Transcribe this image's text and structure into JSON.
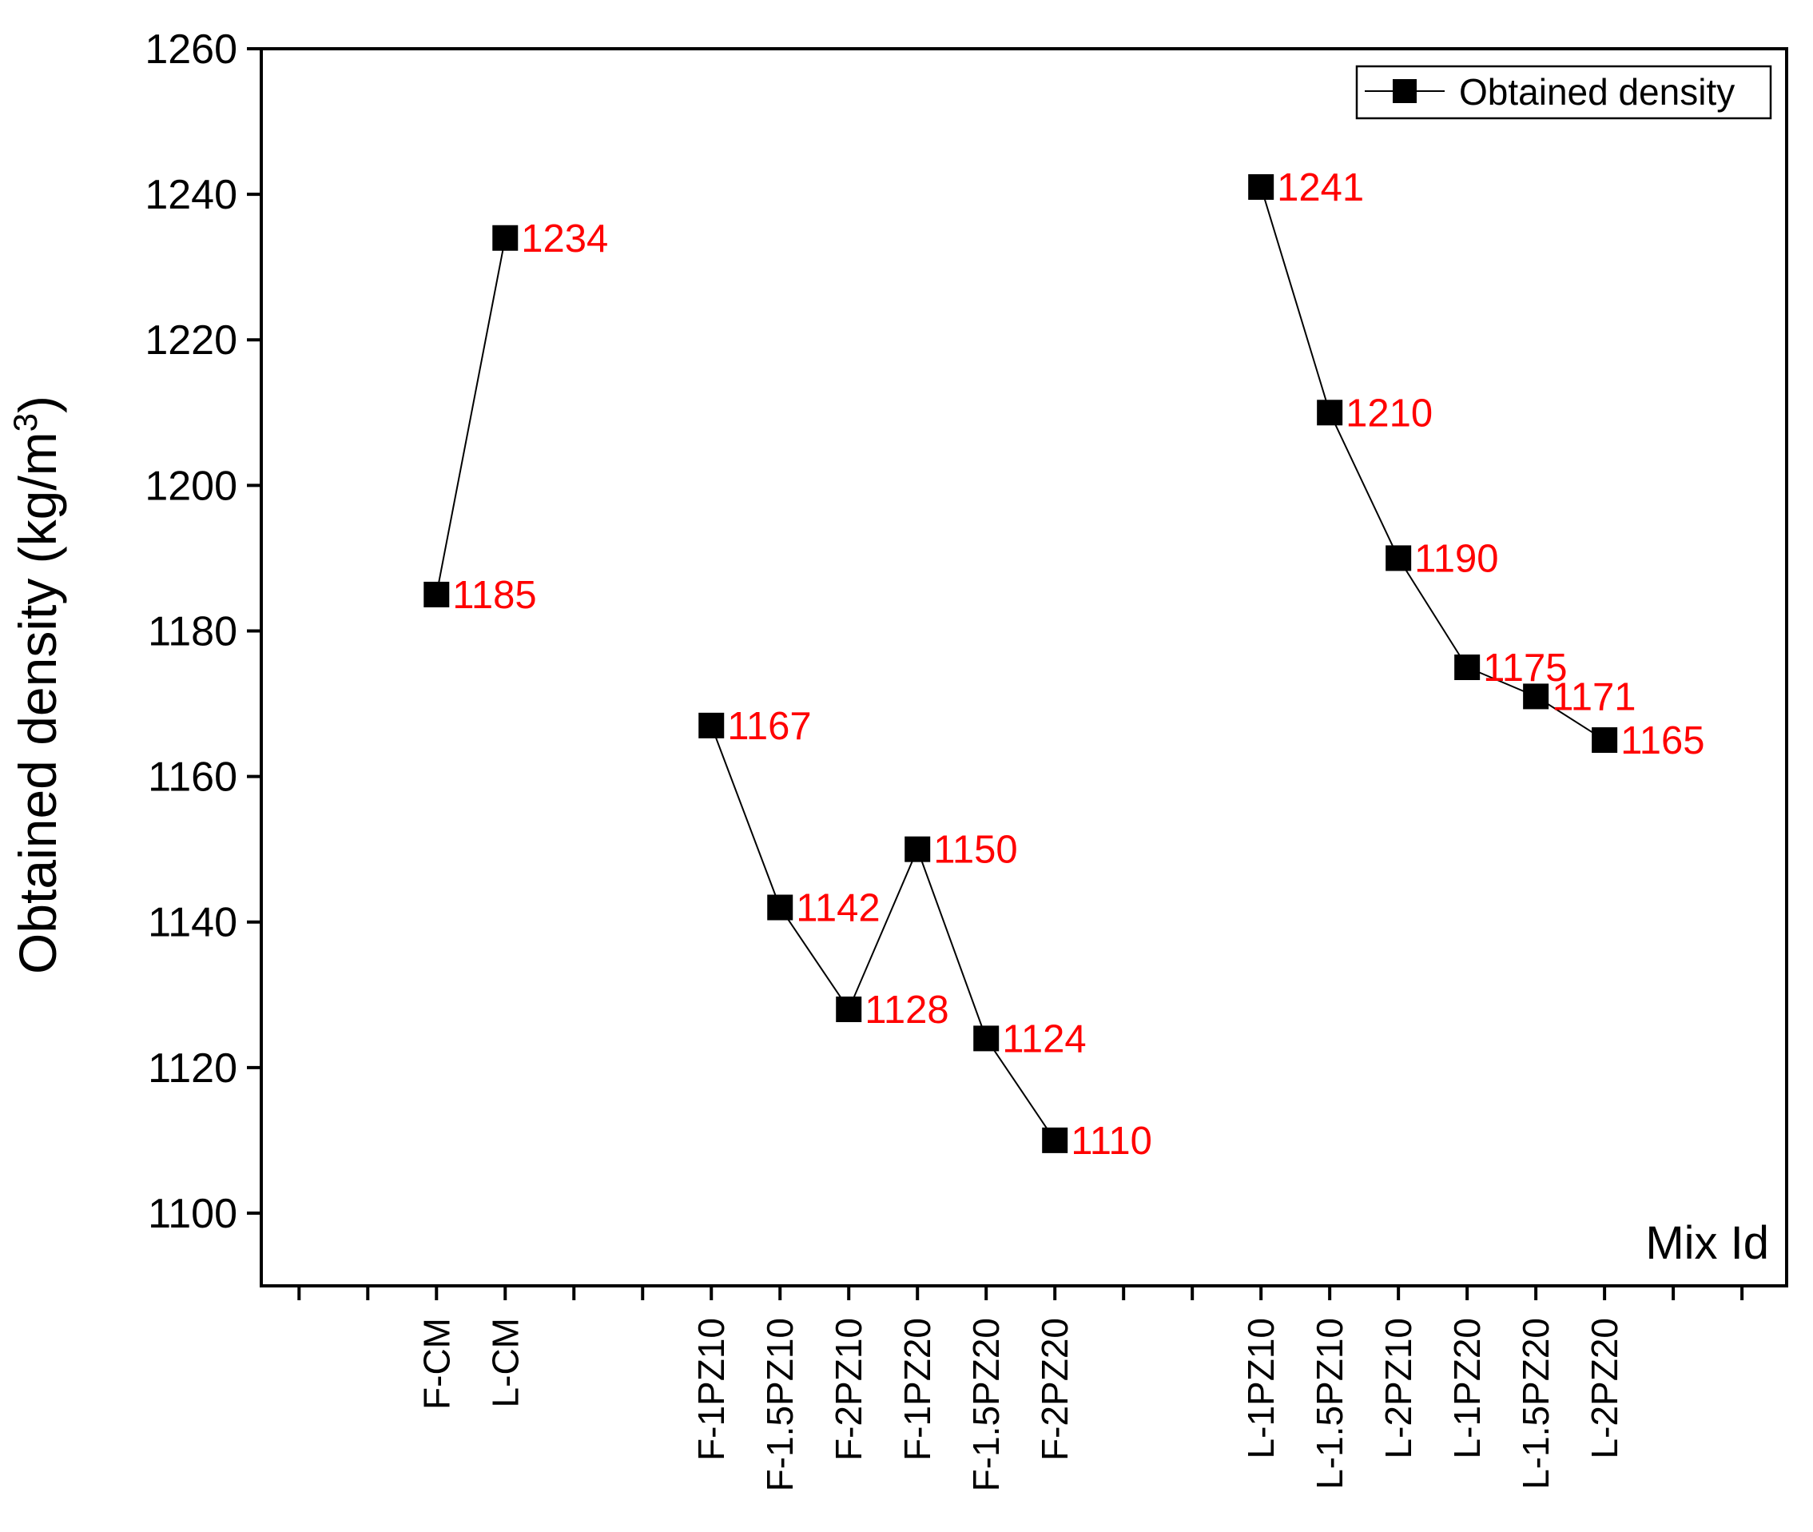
{
  "chart_data": {
    "type": "line",
    "title": "",
    "xlabel": "Mix Id",
    "ylabel": "Obtained density (kg/m",
    "ylabel_superscript": "3",
    "ylabel_close": ")",
    "ylim": [
      1090,
      1260
    ],
    "yticks": [
      1100,
      1120,
      1140,
      1160,
      1180,
      1200,
      1220,
      1240,
      1260
    ],
    "legend": {
      "label": "Obtained density",
      "placement": "top-right"
    },
    "marker": "square",
    "color": "#000000",
    "label_color": "#ff0000",
    "series": [
      {
        "name": "Obtained density",
        "groups": [
          {
            "points": [
              {
                "x": "F-CM",
                "y": 1185
              },
              {
                "x": "L-CM",
                "y": 1234
              }
            ]
          },
          {
            "points": [
              {
                "x": "F-1PZ10",
                "y": 1167
              },
              {
                "x": "F-1.5PZ10",
                "y": 1142
              },
              {
                "x": "F-2PZ10",
                "y": 1128
              },
              {
                "x": "F-1PZ20",
                "y": 1150
              },
              {
                "x": "F-1.5PZ20",
                "y": 1124
              },
              {
                "x": "F-2PZ20",
                "y": 1110
              }
            ]
          },
          {
            "points": [
              {
                "x": "L-1PZ10",
                "y": 1241
              },
              {
                "x": "L-1.5PZ10",
                "y": 1210
              },
              {
                "x": "L-2PZ10",
                "y": 1190
              },
              {
                "x": "L-1PZ20",
                "y": 1175
              },
              {
                "x": "L-1.5PZ20",
                "y": 1171
              },
              {
                "x": "L-2PZ20",
                "y": 1165
              }
            ]
          }
        ]
      }
    ],
    "x_slots": [
      "",
      "",
      "F-CM",
      "L-CM",
      "",
      "",
      "F-1PZ10",
      "F-1.5PZ10",
      "F-2PZ10",
      "F-1PZ20",
      "F-1.5PZ20",
      "F-2PZ20",
      "",
      "",
      "L-1PZ10",
      "L-1.5PZ10",
      "L-2PZ10",
      "L-1PZ20",
      "L-1.5PZ20",
      "L-2PZ20",
      "",
      ""
    ]
  }
}
